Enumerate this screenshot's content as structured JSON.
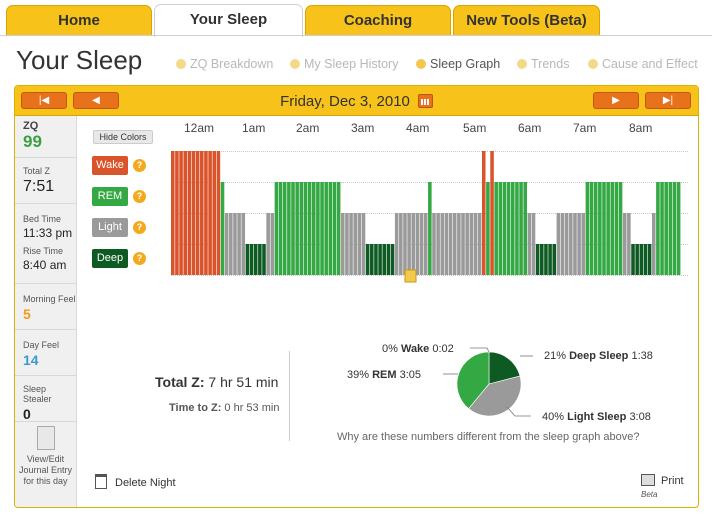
{
  "tabs": [
    {
      "label": "Home"
    },
    {
      "label": "Your Sleep"
    },
    {
      "label": "Coaching"
    },
    {
      "label": "New Tools (Beta)"
    }
  ],
  "page_title": "Your Sleep",
  "subnav": [
    {
      "label": "ZQ Breakdown"
    },
    {
      "label": "My Sleep History"
    },
    {
      "label": "Sleep Graph"
    },
    {
      "label": "Trends"
    },
    {
      "label": "Cause and Effect"
    }
  ],
  "date_bar": {
    "date": "Friday, Dec 3, 2010",
    "first_icon": "skip-first-icon",
    "prev_icon": "arrow-left-icon",
    "next_icon": "arrow-right-icon",
    "last_icon": "skip-last-icon",
    "calendar_icon": "calendar-icon"
  },
  "sidebar": {
    "zq_label": "ZQ",
    "zq_value": "99",
    "total_z_label": "Total Z",
    "total_z_value": "7:51",
    "bed_time_label": "Bed Time",
    "bed_time_value": "11:33 pm",
    "rise_time_label": "Rise Time",
    "rise_time_value": "8:40 am",
    "morning_feel_label": "Morning Feel",
    "morning_feel_value": "5",
    "day_feel_label": "Day Feel",
    "day_feel_value": "14",
    "sleep_stealer_label": "Sleep Stealer",
    "sleep_stealer_value": "0",
    "journal_text": "View/Edit Journal Entry for this day"
  },
  "hide_colors_label": "Hide Colors",
  "hours": [
    "12am",
    "1am",
    "2am",
    "3am",
    "4am",
    "5am",
    "6am",
    "7am",
    "8am"
  ],
  "stages": [
    {
      "label": "Wake",
      "color": "#d9532b"
    },
    {
      "label": "REM",
      "color": "#34a843"
    },
    {
      "label": "Light",
      "color": "#9a9a9a"
    },
    {
      "label": "Deep",
      "color": "#0e5a23"
    }
  ],
  "help_glyph": "?",
  "sleep_segments": [
    "W",
    "W",
    "W",
    "W",
    "W",
    "W",
    "W",
    "W",
    "W",
    "W",
    "W",
    "W",
    "R",
    "L",
    "L",
    "L",
    "L",
    "L",
    "D",
    "D",
    "D",
    "D",
    "D",
    "L",
    "L",
    "R",
    "R",
    "R",
    "R",
    "R",
    "R",
    "R",
    "R",
    "R",
    "R",
    "R",
    "R",
    "R",
    "R",
    "R",
    "R",
    "L",
    "L",
    "L",
    "L",
    "L",
    "L",
    "D",
    "D",
    "D",
    "D",
    "D",
    "D",
    "D",
    "L",
    "L",
    "L",
    "L",
    "L",
    "L",
    "L",
    "L",
    "R",
    "L",
    "L",
    "L",
    "L",
    "L",
    "L",
    "L",
    "L",
    "L",
    "L",
    "L",
    "L",
    "W",
    "R",
    "W",
    "R",
    "R",
    "R",
    "R",
    "R",
    "R",
    "R",
    "R",
    "L",
    "L",
    "D",
    "D",
    "D",
    "D",
    "D",
    "L",
    "L",
    "L",
    "L",
    "L",
    "L",
    "L",
    "R",
    "R",
    "R",
    "R",
    "R",
    "R",
    "R",
    "R",
    "R",
    "L",
    "L",
    "D",
    "D",
    "D",
    "D",
    "D",
    "L",
    "R",
    "R",
    "R",
    "R",
    "R",
    "R"
  ],
  "summary": {
    "total_z_label": "Total Z:",
    "total_z_value": "7 hr 51 min",
    "time_to_z_label": "Time to Z:",
    "time_to_z_value": "0 hr 53 min"
  },
  "chart_data": {
    "type": "pie",
    "slices": [
      {
        "label": "Deep Sleep",
        "percent": 21,
        "time": "1:38",
        "color": "#0e5a23"
      },
      {
        "label": "Light Sleep",
        "percent": 40,
        "time": "3:08",
        "color": "#9a9a9a"
      },
      {
        "label": "REM",
        "percent": 39,
        "time": "3:05",
        "color": "#34a843"
      },
      {
        "label": "Wake",
        "percent": 0,
        "time": "0:02",
        "color": "#d9532b"
      }
    ]
  },
  "pie_labels": {
    "wake_pct": "0%",
    "wake_name": "Wake",
    "wake_time": "0:02",
    "rem_pct": "39%",
    "rem_name": "REM",
    "rem_time": "3:05",
    "deep_pct": "21%",
    "deep_name": "Deep Sleep",
    "deep_time": "1:38",
    "light_pct": "40%",
    "light_name": "Light Sleep",
    "light_time": "3:08"
  },
  "why_text": "Why are these numbers different from the sleep graph above?",
  "delete_label": "Delete Night",
  "print_label": "Print",
  "beta_label": "Beta"
}
